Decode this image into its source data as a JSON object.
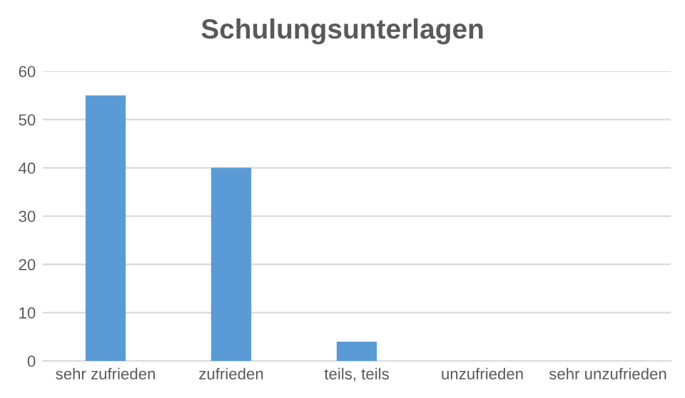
{
  "chart_data": {
    "type": "bar",
    "title": "Schulungsunterlagen",
    "categories": [
      "sehr zufrieden",
      "zufrieden",
      "teils, teils",
      "unzufrieden",
      "sehr unzufrieden"
    ],
    "values": [
      55,
      40,
      4,
      0,
      0
    ],
    "color": "#5b9bd5",
    "ylim": [
      0,
      60
    ],
    "yticks": [
      0,
      10,
      20,
      30,
      40,
      50,
      60
    ],
    "grid": "y",
    "legend": false
  }
}
